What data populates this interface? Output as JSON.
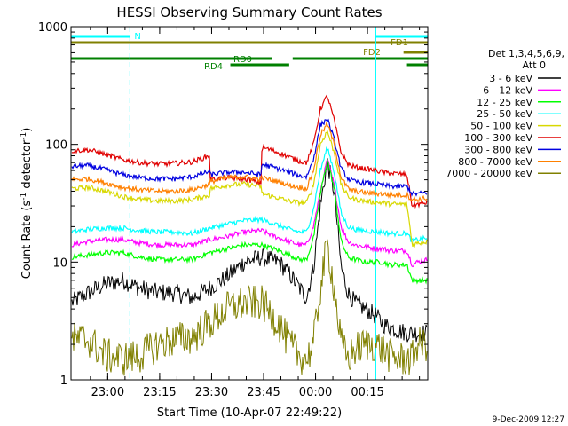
{
  "chart_data": {
    "type": "line",
    "title": "HESSI Observing Summary Count Rates",
    "xlabel": "Start Time (10-Apr-07 22:49:22)",
    "ylabel_parts": [
      "Count Rate (s",
      "-1",
      " detector",
      "-1",
      ")"
    ],
    "yscale": "log",
    "ylim": [
      1,
      1000
    ],
    "xlim_minutes_from_start": [
      0,
      103
    ],
    "x_ticks": [
      {
        "label": "23:00",
        "min": 10.6
      },
      {
        "label": "23:15",
        "min": 25.6
      },
      {
        "label": "23:30",
        "min": 40.6
      },
      {
        "label": "23:45",
        "min": 55.6
      },
      {
        "label": "00:00",
        "min": 70.6
      },
      {
        "label": "00:15",
        "min": 85.6
      }
    ],
    "y_ticks": [
      {
        "label": "1",
        "value": 1
      },
      {
        "label": "10",
        "value": 10
      },
      {
        "label": "100",
        "value": 100
      },
      {
        "label": "1000",
        "value": 1000
      }
    ],
    "legend": {
      "placement": "right",
      "header": [
        "Det 1,3,4,5,6,9,",
        "Att 0"
      ],
      "entries": [
        {
          "label": "3 - 6 keV",
          "color": "#000000"
        },
        {
          "label": "6 - 12 keV",
          "color": "#ff00ff"
        },
        {
          "label": "12 - 25 keV",
          "color": "#00ff00"
        },
        {
          "label": "25 - 50 keV",
          "color": "#00ffff"
        },
        {
          "label": "50 - 100 keV",
          "color": "#d8d800"
        },
        {
          "label": "100 - 300 keV",
          "color": "#e00000"
        },
        {
          "label": "300 - 800 keV",
          "color": "#0000e0"
        },
        {
          "label": "800 - 7000 keV",
          "color": "#ff8000"
        },
        {
          "label": "7000 - 20000 keV",
          "color": "#808000"
        }
      ]
    },
    "series": [
      {
        "name": "3 - 6 keV",
        "color": "#000000",
        "x": [
          0,
          5,
          10,
          15,
          20,
          25,
          30,
          35,
          40,
          45,
          50,
          55,
          60,
          63,
          66,
          68,
          70,
          72,
          74,
          76,
          78,
          80,
          82,
          85,
          88,
          90,
          92,
          95,
          97,
          98.5,
          100,
          103
        ],
        "y": [
          4.5,
          5.5,
          6.5,
          7,
          6,
          5.5,
          5.5,
          5,
          6,
          7.5,
          10,
          11,
          10,
          8,
          6,
          5,
          9,
          30,
          70,
          40,
          9,
          5.5,
          4.5,
          4,
          3.5,
          3,
          2.8,
          2.6,
          2.5,
          2.5,
          2.5,
          2.5
        ]
      },
      {
        "name": "6 - 12 keV",
        "color": "#ff00ff",
        "x": [
          0,
          5,
          10,
          15,
          20,
          25,
          30,
          35,
          40,
          45,
          50,
          55,
          60,
          63,
          66,
          68,
          70,
          72,
          74,
          76,
          78,
          80,
          82,
          85,
          88,
          90,
          92,
          95,
          97,
          98.5,
          100,
          103
        ],
        "y": [
          14,
          15,
          15.5,
          15.5,
          14.5,
          14,
          14,
          14,
          15.5,
          16.5,
          18,
          18.5,
          16,
          15,
          14,
          14,
          20,
          40,
          75,
          45,
          20,
          15,
          14,
          13.5,
          13,
          13,
          12.5,
          12.5,
          12.5,
          9.5,
          10,
          10.5
        ]
      },
      {
        "name": "12 - 25 keV",
        "color": "#00ff00",
        "x": [
          0,
          5,
          10,
          15,
          20,
          25,
          30,
          35,
          40,
          45,
          50,
          55,
          60,
          63,
          66,
          68,
          70,
          72,
          74,
          76,
          78,
          80,
          82,
          85,
          88,
          90,
          92,
          95,
          97,
          98.5,
          100,
          103
        ],
        "y": [
          11,
          11.5,
          12,
          12,
          11,
          10.5,
          10.5,
          10.5,
          12,
          13,
          14,
          14,
          12.5,
          11.5,
          10.5,
          10.5,
          16,
          38,
          74,
          42,
          15,
          11,
          10.5,
          10,
          10,
          10,
          9.5,
          9.5,
          9.5,
          7,
          7,
          7
        ]
      },
      {
        "name": "25 - 50 keV",
        "color": "#00ffff",
        "x": [
          0,
          5,
          10,
          15,
          20,
          25,
          30,
          35,
          40,
          45,
          50,
          55,
          60,
          63,
          66,
          68,
          70,
          72,
          74,
          76,
          78,
          80,
          82,
          85,
          88,
          90,
          92,
          95,
          97,
          98.5,
          100,
          103
        ],
        "y": [
          18,
          19,
          19.5,
          19.5,
          18.5,
          18,
          18,
          17.5,
          19.5,
          21,
          22.5,
          23,
          20.5,
          19,
          18,
          18,
          28,
          60,
          95,
          58,
          26,
          20,
          19,
          18.5,
          18,
          18,
          17.5,
          17.5,
          17.5,
          15,
          15.5,
          16
        ]
      },
      {
        "name": "50 - 100 keV",
        "color": "#d8d800",
        "x": [
          0,
          5,
          10,
          15,
          20,
          25,
          30,
          35,
          40,
          40.1,
          45,
          50,
          55,
          55.1,
          60,
          63,
          66,
          68,
          70,
          72,
          74,
          76,
          78,
          80,
          82,
          85,
          88,
          90,
          92,
          95,
          97,
          98.5,
          100,
          103
        ],
        "y": [
          42,
          43,
          40,
          36,
          34,
          33,
          33,
          34,
          37,
          42,
          45,
          46,
          44,
          38,
          35,
          33,
          32,
          32,
          45,
          100,
          130,
          85,
          45,
          36,
          34,
          33,
          32,
          32,
          31,
          31,
          31,
          14,
          14.5,
          15
        ]
      },
      {
        "name": "100 - 300 keV",
        "color": "#e00000",
        "x": [
          0,
          5,
          10,
          15,
          20,
          25,
          30,
          35,
          40,
          40.1,
          45,
          50,
          55,
          55.1,
          60,
          63,
          66,
          68,
          70,
          72,
          74,
          76,
          78,
          80,
          82,
          85,
          88,
          90,
          92,
          95,
          97,
          98.5,
          100,
          103
        ],
        "y": [
          88,
          90,
          82,
          74,
          70,
          68,
          69,
          71,
          80,
          50,
          52,
          51,
          47,
          95,
          85,
          78,
          72,
          70,
          100,
          200,
          260,
          160,
          85,
          68,
          64,
          62,
          60,
          58,
          57,
          56,
          55,
          30,
          31,
          32
        ]
      },
      {
        "name": "300 - 800 keV",
        "color": "#0000e0",
        "x": [
          0,
          5,
          10,
          15,
          20,
          25,
          30,
          35,
          40,
          40.1,
          45,
          50,
          55,
          55.1,
          60,
          63,
          66,
          68,
          70,
          72,
          74,
          76,
          78,
          80,
          82,
          85,
          88,
          90,
          92,
          95,
          97,
          98.5,
          100,
          103
        ],
        "y": [
          65,
          66,
          61,
          55,
          52,
          51,
          51,
          53,
          59,
          55,
          58,
          58,
          55,
          68,
          62,
          58,
          54,
          53,
          75,
          145,
          165,
          110,
          62,
          51,
          48,
          47,
          46,
          45,
          44,
          44,
          44,
          38,
          38,
          39
        ]
      },
      {
        "name": "800 - 7000 keV",
        "color": "#ff8000",
        "x": [
          0,
          5,
          10,
          15,
          20,
          25,
          30,
          35,
          40,
          40.1,
          45,
          50,
          55,
          55.1,
          60,
          63,
          66,
          68,
          70,
          72,
          74,
          76,
          78,
          80,
          82,
          85,
          88,
          90,
          92,
          95,
          97,
          98.5,
          100,
          103
        ],
        "y": [
          50,
          51,
          47,
          43,
          41,
          40,
          40,
          41,
          46,
          48,
          52,
          53,
          50,
          52,
          48,
          45,
          43,
          42,
          60,
          120,
          150,
          100,
          52,
          42,
          40,
          39,
          38,
          38,
          37,
          37,
          37,
          34,
          34,
          35
        ]
      },
      {
        "name": "7000 - 20000 keV",
        "color": "#808000",
        "x": [
          0,
          5,
          10,
          15,
          20,
          25,
          30,
          35,
          40,
          45,
          50,
          55,
          60,
          63,
          66,
          68,
          70,
          72,
          74,
          76,
          78,
          80,
          82,
          85,
          88,
          90,
          92,
          95,
          97,
          98.5,
          100,
          103
        ],
        "y": [
          2.2,
          2.2,
          1.6,
          1.5,
          1.6,
          2,
          2.2,
          2.3,
          3,
          4,
          4.5,
          4.5,
          3,
          2,
          1.6,
          1.5,
          2,
          6,
          14,
          6,
          2,
          1.5,
          1.8,
          2,
          2,
          1.8,
          1.6,
          1.5,
          1.5,
          1.5,
          2,
          2
        ]
      }
    ],
    "flags": [
      {
        "label": "N",
        "color": "#00ffff",
        "segments": [
          [
            0,
            17
          ],
          [
            88,
            103
          ]
        ]
      },
      {
        "label": "FD1",
        "color": "#808000",
        "segments": [
          [
            0,
            103
          ]
        ]
      },
      {
        "label": "FD2",
        "color": "#808000",
        "segments": [
          [
            96,
            103
          ]
        ]
      },
      {
        "label": "RD0",
        "color": "#008000",
        "segments": [
          [
            0,
            58
          ],
          [
            64,
            103
          ]
        ]
      },
      {
        "label": "RD4",
        "color": "#008000",
        "segments": [
          [
            46,
            63
          ],
          [
            97,
            103
          ]
        ]
      }
    ],
    "vertical_markers": [
      {
        "min": 17,
        "color": "#00ffff",
        "style": "dashed"
      },
      {
        "min": 88,
        "color": "#00ffff",
        "style": "solid"
      },
      {
        "min": 103,
        "color": "#00ffff",
        "style": "dashed"
      }
    ],
    "timestamp": "9-Dec-2009 12:27"
  }
}
